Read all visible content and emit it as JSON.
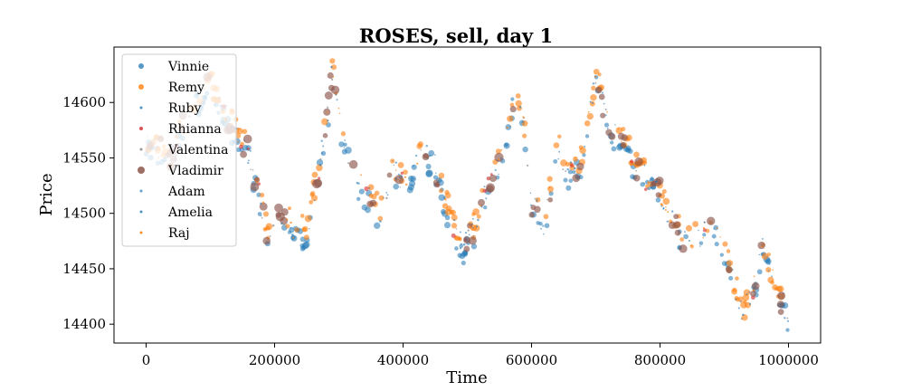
{
  "chart_data": {
    "type": "scatter",
    "title": "ROSES, sell, day 1",
    "xlabel": "Time",
    "ylabel": "Price",
    "xlim": [
      -50000,
      1050000
    ],
    "ylim": [
      14383,
      14650
    ],
    "xticks": [
      0,
      200000,
      400000,
      600000,
      800000,
      1000000
    ],
    "xtick_labels": [
      "0",
      "200000",
      "400000",
      "600000",
      "800000",
      "1000000"
    ],
    "yticks": [
      14400,
      14450,
      14500,
      14550,
      14600
    ],
    "ytick_labels": [
      "14400",
      "14450",
      "14500",
      "14550",
      "14600"
    ],
    "grid": false,
    "legend_position": "top-left",
    "price_path": [
      [
        0,
        14560
      ],
      [
        20000,
        14558
      ],
      [
        40000,
        14548
      ],
      [
        60000,
        14585
      ],
      [
        80000,
        14605
      ],
      [
        100000,
        14615
      ],
      [
        120000,
        14592
      ],
      [
        140000,
        14575
      ],
      [
        160000,
        14555
      ],
      [
        175000,
        14520
      ],
      [
        190000,
        14478
      ],
      [
        210000,
        14498
      ],
      [
        230000,
        14488
      ],
      [
        250000,
        14482
      ],
      [
        265000,
        14530
      ],
      [
        280000,
        14575
      ],
      [
        290000,
        14632
      ],
      [
        305000,
        14575
      ],
      [
        325000,
        14535
      ],
      [
        345000,
        14515
      ],
      [
        365000,
        14500
      ],
      [
        385000,
        14540
      ],
      [
        405000,
        14525
      ],
      [
        425000,
        14548
      ],
      [
        445000,
        14552
      ],
      [
        460000,
        14520
      ],
      [
        475000,
        14493
      ],
      [
        495000,
        14470
      ],
      [
        515000,
        14490
      ],
      [
        535000,
        14530
      ],
      [
        555000,
        14550
      ],
      [
        570000,
        14600
      ],
      [
        585000,
        14598
      ],
      [
        600000,
        14510
      ],
      [
        620000,
        14490
      ],
      [
        640000,
        14560
      ],
      [
        660000,
        14535
      ],
      [
        680000,
        14548
      ],
      [
        700000,
        14625
      ],
      [
        720000,
        14575
      ],
      [
        740000,
        14570
      ],
      [
        760000,
        14545
      ],
      [
        780000,
        14530
      ],
      [
        800000,
        14520
      ],
      [
        820000,
        14490
      ],
      [
        840000,
        14475
      ],
      [
        860000,
        14478
      ],
      [
        880000,
        14490
      ],
      [
        900000,
        14470
      ],
      [
        915000,
        14435
      ],
      [
        930000,
        14410
      ],
      [
        945000,
        14430
      ],
      [
        960000,
        14470
      ],
      [
        980000,
        14430
      ],
      [
        1000000,
        14410
      ]
    ],
    "series": [
      {
        "name": "Vinnie",
        "color": "#1f77b4",
        "size": 3.0,
        "opacity": 0.55,
        "offset": -6
      },
      {
        "name": "Remy",
        "color": "#ff7f0e",
        "size": 3.0,
        "opacity": 0.6,
        "offset": 4
      },
      {
        "name": "Ruby",
        "color": "#1f77b4",
        "size": 1.0,
        "opacity": 0.6,
        "offset": 0
      },
      {
        "name": "Rhianna",
        "color": "#d62728",
        "size": 2.0,
        "opacity": 0.6,
        "offset": 0
      },
      {
        "name": "Valentina",
        "color": "#7f7f7f",
        "size": 1.0,
        "opacity": 0.6,
        "offset": 0
      },
      {
        "name": "Vladimir",
        "color": "#8c564b",
        "size": 4.0,
        "opacity": 0.65,
        "offset": 0
      },
      {
        "name": "Adam",
        "color": "#1f77b4",
        "size": 1.0,
        "opacity": 0.5,
        "offset": 0
      },
      {
        "name": "Amelia",
        "color": "#1f77b4",
        "size": 1.0,
        "opacity": 0.6,
        "offset": 0
      },
      {
        "name": "Raj",
        "color": "#ff7f0e",
        "size": 1.0,
        "opacity": 0.7,
        "offset": 0
      }
    ]
  }
}
